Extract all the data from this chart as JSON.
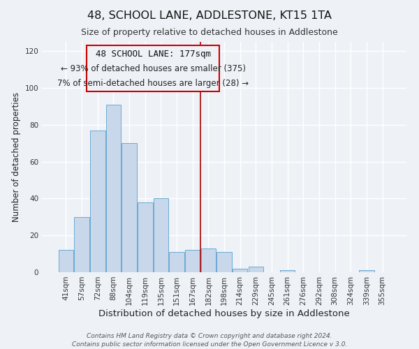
{
  "title": "48, SCHOOL LANE, ADDLESTONE, KT15 1TA",
  "subtitle": "Size of property relative to detached houses in Addlestone",
  "xlabel": "Distribution of detached houses by size in Addlestone",
  "ylabel": "Number of detached properties",
  "categories": [
    "41sqm",
    "57sqm",
    "72sqm",
    "88sqm",
    "104sqm",
    "119sqm",
    "135sqm",
    "151sqm",
    "167sqm",
    "182sqm",
    "198sqm",
    "214sqm",
    "229sqm",
    "245sqm",
    "261sqm",
    "276sqm",
    "292sqm",
    "308sqm",
    "324sqm",
    "339sqm",
    "355sqm"
  ],
  "values": [
    12,
    30,
    77,
    91,
    70,
    38,
    40,
    11,
    12,
    13,
    11,
    2,
    3,
    0,
    1,
    0,
    0,
    0,
    0,
    1,
    0
  ],
  "bar_color": "#c8d8ea",
  "bar_edge_color": "#6aaad4",
  "property_label": "48 SCHOOL LANE: 177sqm",
  "annotation_line1": "← 93% of detached houses are smaller (375)",
  "annotation_line2": "7% of semi-detached houses are larger (28) →",
  "vline_color": "#aa0000",
  "ylim": [
    0,
    125
  ],
  "yticks": [
    0,
    20,
    40,
    60,
    80,
    100,
    120
  ],
  "background_color": "#eef2f7",
  "grid_color": "#ffffff",
  "footer_line1": "Contains HM Land Registry data © Crown copyright and database right 2024.",
  "footer_line2": "Contains public sector information licensed under the Open Government Licence v 3.0.",
  "box_edge_color": "#cc0000",
  "title_fontsize": 11.5,
  "subtitle_fontsize": 9,
  "xlabel_fontsize": 9.5,
  "ylabel_fontsize": 8.5,
  "tick_fontsize": 7.5,
  "annotation_fontsize": 8.5,
  "footer_fontsize": 6.5,
  "vline_x": 8.5
}
